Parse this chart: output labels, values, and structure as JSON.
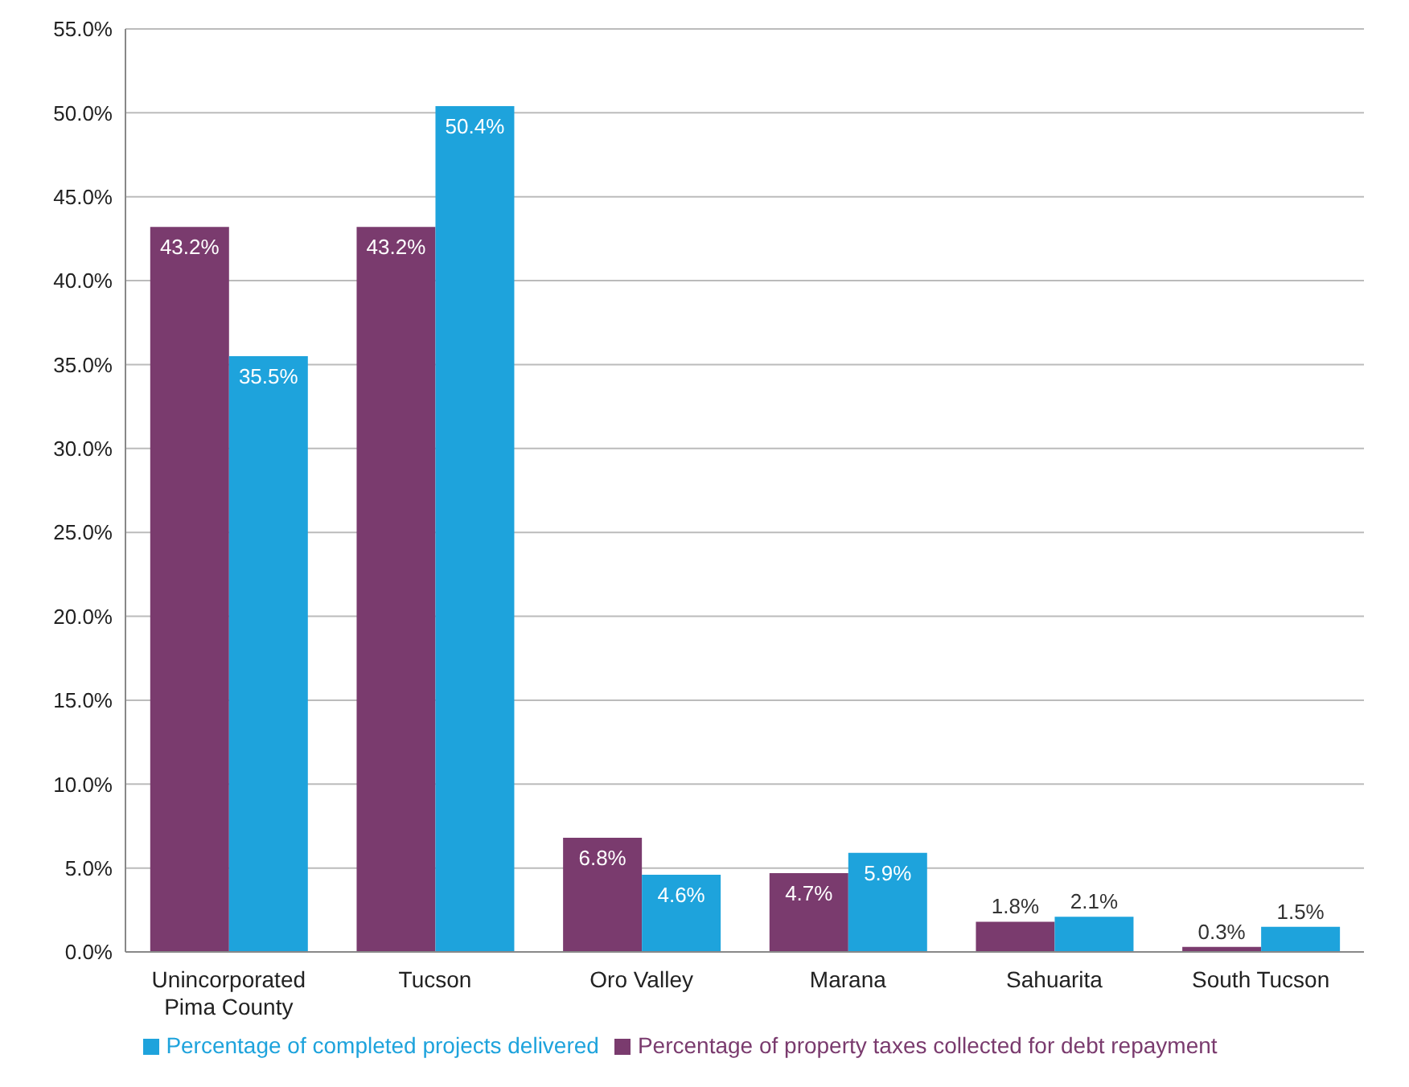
{
  "chart_data": {
    "type": "bar",
    "categories": [
      "Unincorporated Pima County",
      "Tucson",
      "Oro Valley",
      "Marana",
      "Sahuarita",
      "South Tucson"
    ],
    "series": [
      {
        "name": "Percentage of property taxes collected for debt repayment",
        "color": "#7a3b6e",
        "values": [
          43.2,
          43.2,
          6.8,
          4.7,
          1.8,
          0.3
        ],
        "value_labels": [
          "43.2%",
          "43.2%",
          "6.8%",
          "4.7%",
          "1.8%",
          "0.3%"
        ]
      },
      {
        "name": "Percentage of completed projects delivered",
        "color": "#1ea3dc",
        "values": [
          35.5,
          50.4,
          4.6,
          5.9,
          2.1,
          1.5
        ],
        "value_labels": [
          "35.5%",
          "50.4%",
          "4.6%",
          "5.9%",
          "2.1%",
          "1.5%"
        ]
      }
    ],
    "ylim": [
      0,
      55
    ],
    "yticks": [
      {
        "value": 0,
        "label": "0.0%"
      },
      {
        "value": 5,
        "label": "5.0%"
      },
      {
        "value": 10,
        "label": "10.0%"
      },
      {
        "value": 15,
        "label": "15.0%"
      },
      {
        "value": 20,
        "label": "20.0%"
      },
      {
        "value": 25,
        "label": "25.0%"
      },
      {
        "value": 30,
        "label": "30.0%"
      },
      {
        "value": 35,
        "label": "35.0%"
      },
      {
        "value": 40,
        "label": "40.0%"
      },
      {
        "value": 45,
        "label": "45.0%"
      },
      {
        "value": 50,
        "label": "50.0%"
      },
      {
        "value": 55,
        "label": "55.0%"
      }
    ],
    "grid": "y",
    "legend": "bottom"
  }
}
